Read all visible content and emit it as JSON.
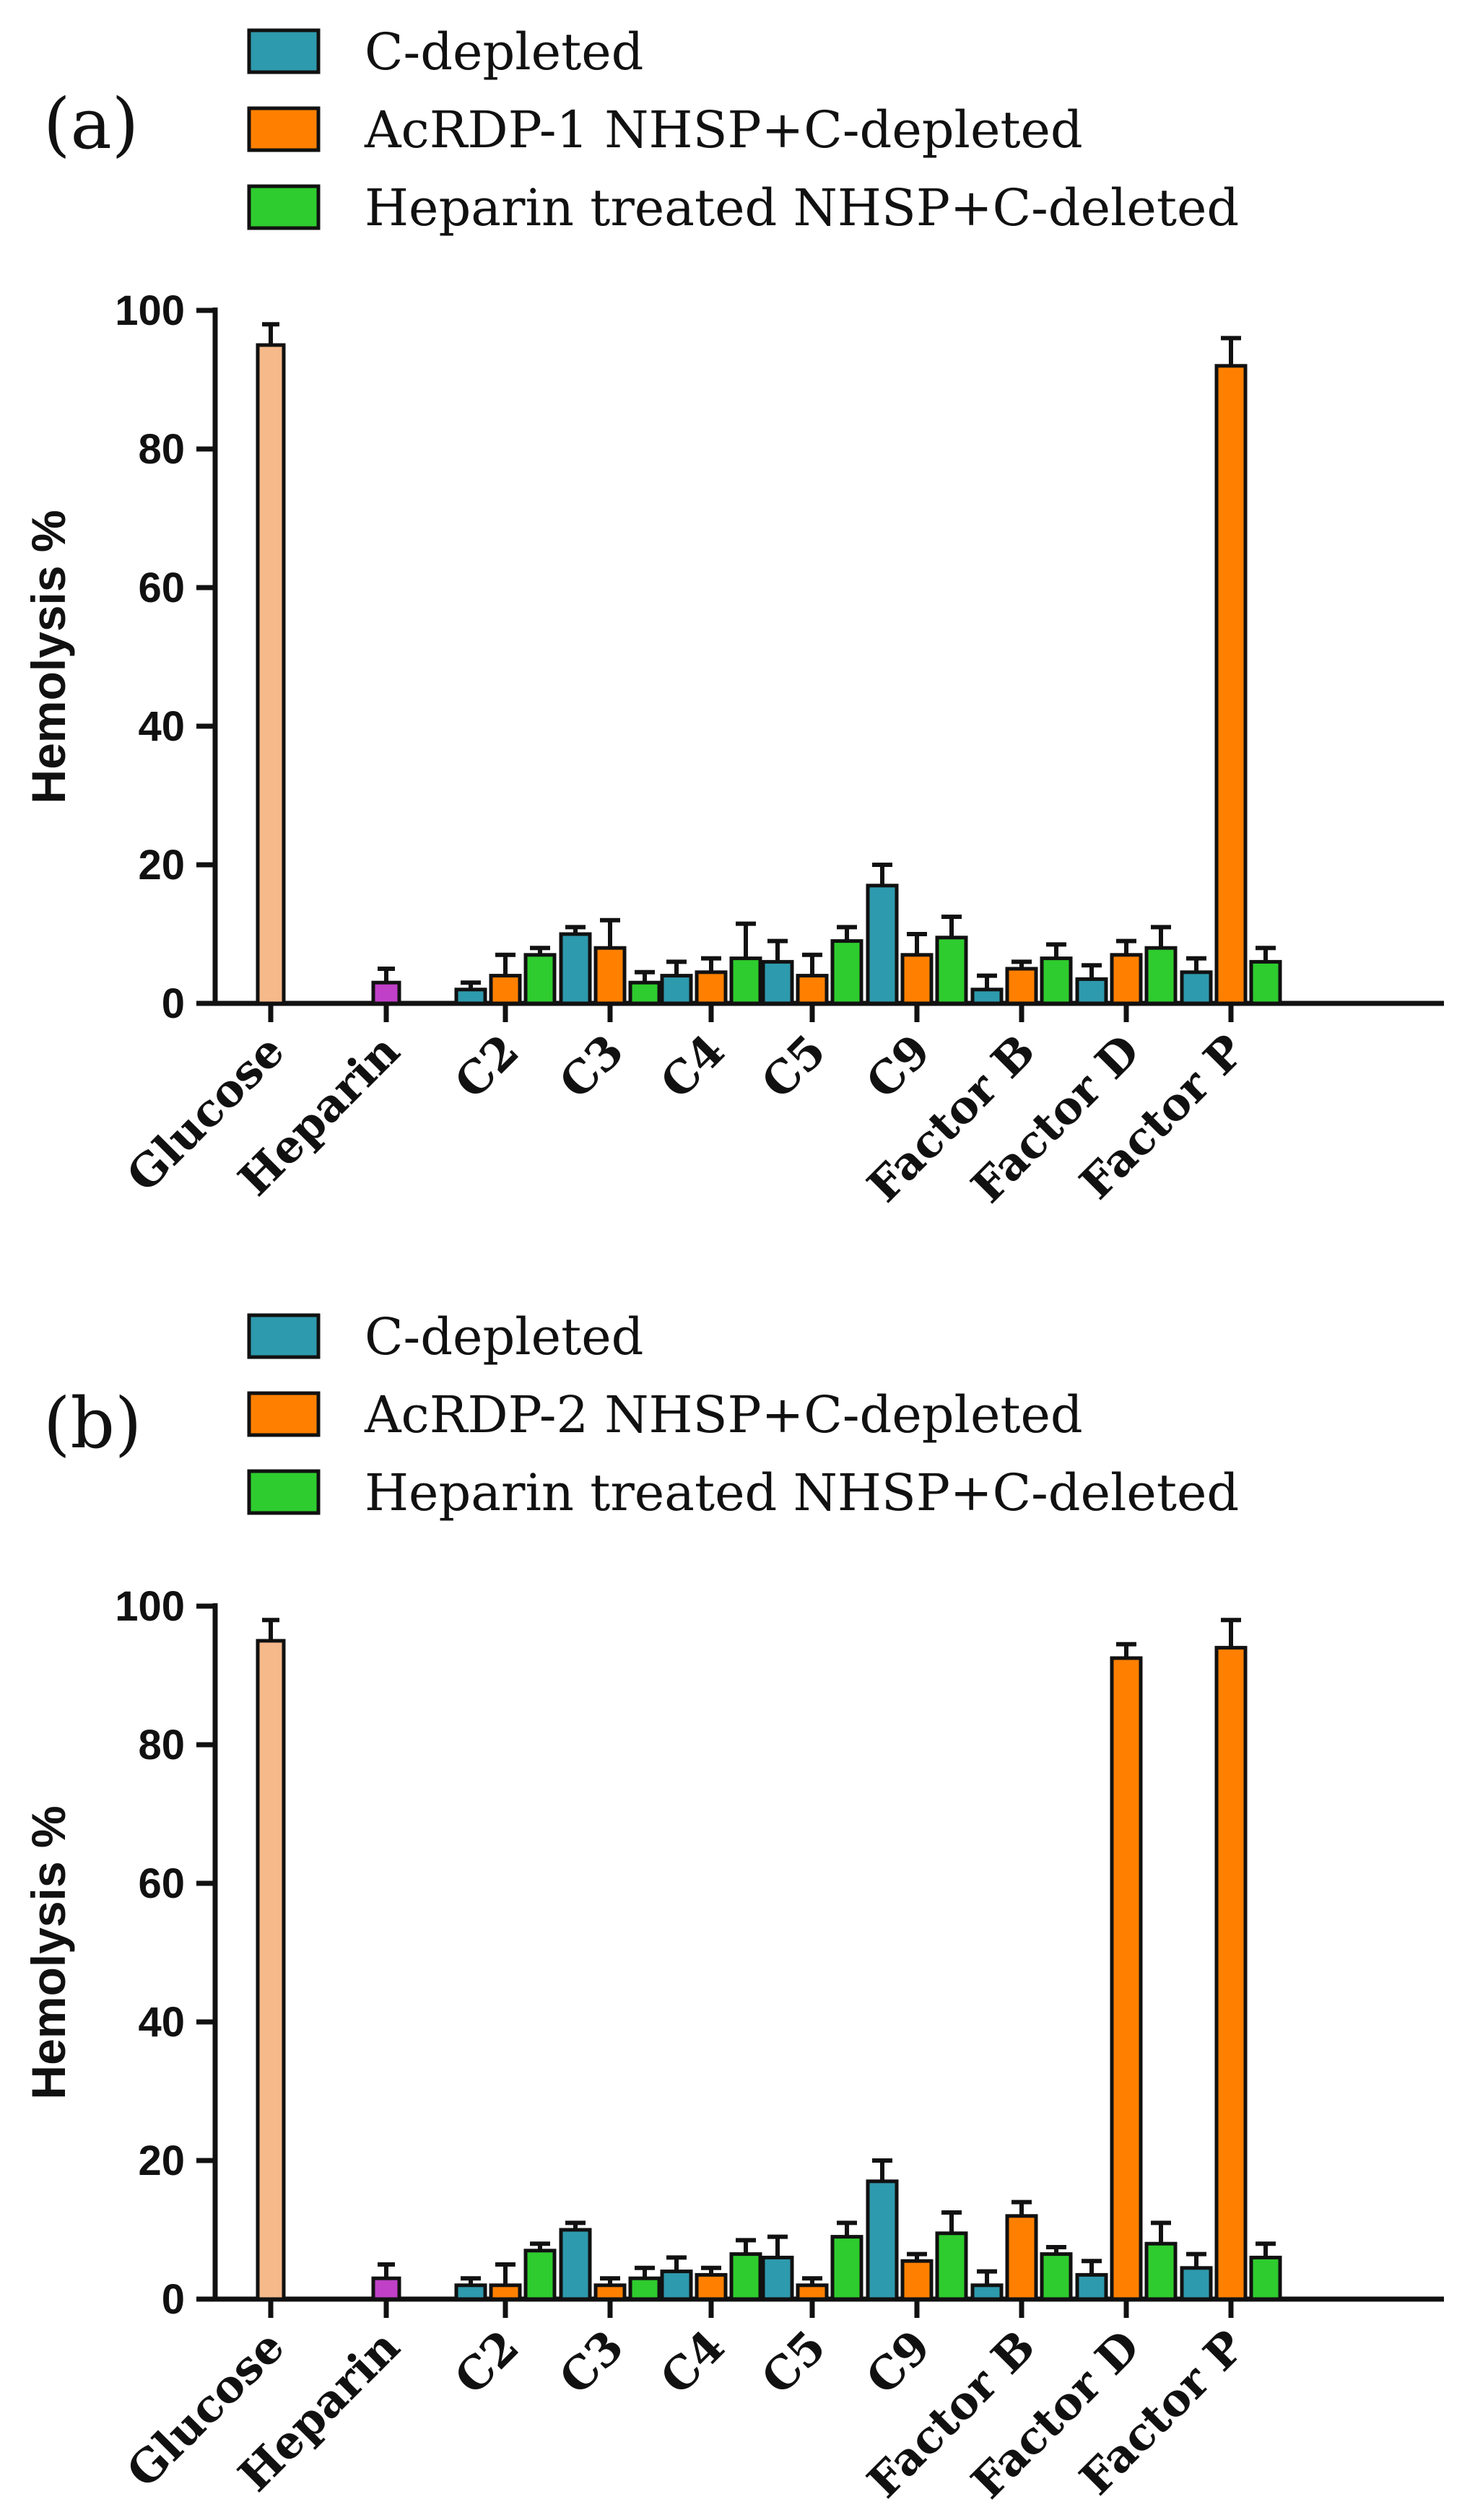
{
  "chart_data": [
    {
      "type": "bar",
      "panel_label": "(a)",
      "ylabel": "Hemolysis %",
      "xlabel": "",
      "ylim": [
        0,
        100
      ],
      "yticks": [
        0,
        20,
        40,
        60,
        80,
        100
      ],
      "categories": [
        "Glucose",
        "Heparin",
        "C2",
        "C3",
        "C4",
        "C5",
        "C9",
        "Factor B",
        "Factor D",
        "Factor P"
      ],
      "controls": [
        {
          "category": "Glucose",
          "value": 95,
          "error": 3,
          "color": "#f5b98a"
        },
        {
          "category": "Heparin",
          "value": 3,
          "error": 2,
          "color": "#c040c8"
        }
      ],
      "series": [
        {
          "name": "C-depleted",
          "color": "#2e9aad",
          "values": [
            null,
            null,
            2,
            10,
            4,
            6,
            17,
            2,
            3.5,
            4.5
          ],
          "errors": [
            null,
            null,
            1,
            1,
            2,
            3,
            3,
            2,
            2,
            2
          ]
        },
        {
          "name": "AcRDP-1 NHSP+C-depleted",
          "color": "#ff8000",
          "values": [
            null,
            null,
            4,
            8,
            4.5,
            4,
            7,
            5,
            7,
            92
          ],
          "errors": [
            null,
            null,
            3,
            4,
            2,
            3,
            3,
            1,
            2,
            4
          ]
        },
        {
          "name": "Heparin treated NHSP+C-deleted",
          "color": "#2ecc2e",
          "values": [
            null,
            null,
            7,
            3,
            6.5,
            9,
            9.5,
            6.5,
            8,
            6
          ],
          "errors": [
            null,
            null,
            1,
            1.5,
            5,
            2,
            3,
            2,
            3,
            2
          ]
        }
      ]
    },
    {
      "type": "bar",
      "panel_label": "(b)",
      "ylabel": "Hemolysis %",
      "xlabel": "",
      "ylim": [
        0,
        100
      ],
      "yticks": [
        0,
        20,
        40,
        60,
        80,
        100
      ],
      "categories": [
        "Glucose",
        "Heparin",
        "C2",
        "C3",
        "C4",
        "C5",
        "C9",
        "Factor B",
        "Factor D",
        "Factor P"
      ],
      "controls": [
        {
          "category": "Glucose",
          "value": 95,
          "error": 3,
          "color": "#f5b98a"
        },
        {
          "category": "Heparin",
          "value": 3,
          "error": 2,
          "color": "#c040c8"
        }
      ],
      "series": [
        {
          "name": "C-depleted",
          "color": "#2e9aad",
          "values": [
            null,
            null,
            2,
            10,
            4,
            6,
            17,
            2,
            3.5,
            4.5
          ],
          "errors": [
            null,
            null,
            1,
            1,
            2,
            3,
            3,
            2,
            2,
            2
          ]
        },
        {
          "name": "AcRDP-2 NHSP+C-depleted",
          "color": "#ff8000",
          "values": [
            null,
            null,
            2,
            2,
            3.5,
            2,
            5.5,
            12,
            92.5,
            94
          ],
          "errors": [
            null,
            null,
            3,
            1,
            1,
            1,
            1,
            2,
            2,
            4
          ]
        },
        {
          "name": "Heparin treated NHSP+C-deleted",
          "color": "#2ecc2e",
          "values": [
            null,
            null,
            7,
            3,
            6.5,
            9,
            9.5,
            6.5,
            8,
            6
          ],
          "errors": [
            null,
            null,
            1,
            1.5,
            2,
            2,
            3,
            1,
            3,
            2
          ]
        }
      ]
    }
  ]
}
